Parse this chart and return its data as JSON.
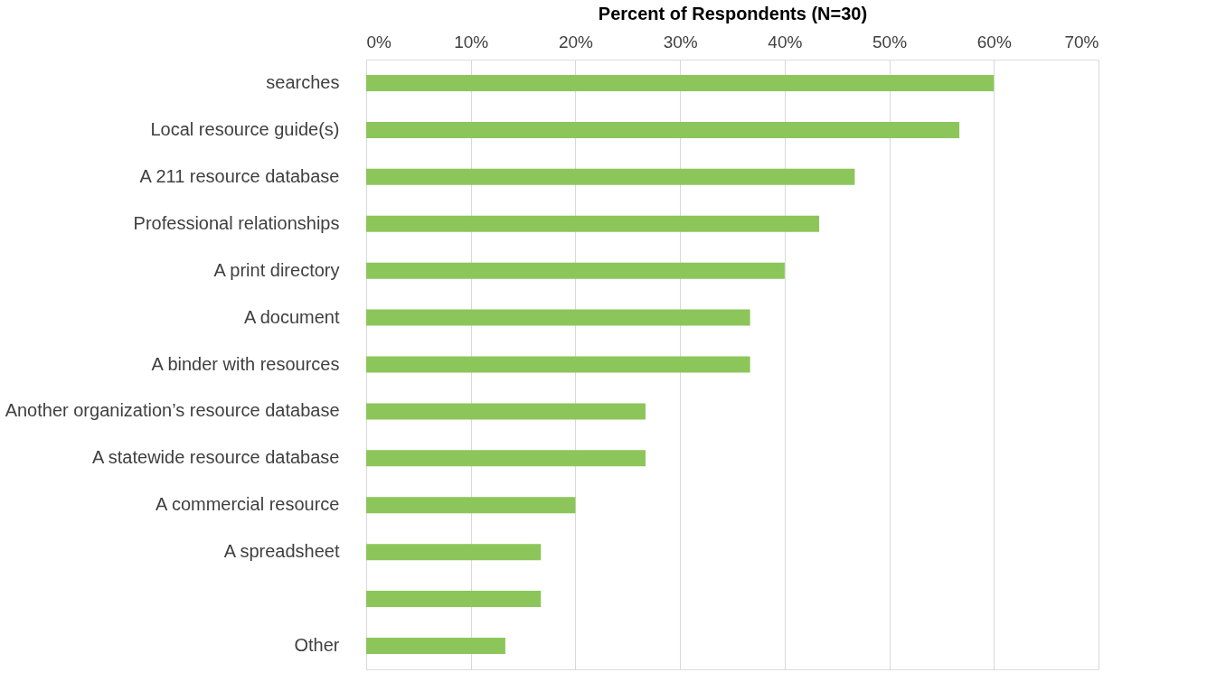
{
  "chart_data": {
    "type": "bar",
    "orientation": "horizontal",
    "xlabel": "Percent of  Respondents (N=30)",
    "categories": [
      "searches",
      "Local resource guide(s)",
      "A 211 resource database",
      "Professional relationships",
      "A print directory",
      "A document",
      "A binder with resources",
      "Another organization’s resource database",
      "A statewide resource database",
      "A commercial resource",
      "A spreadsheet",
      null,
      "Other"
    ],
    "values": [
      60,
      56.7,
      46.7,
      43.3,
      40,
      36.7,
      36.7,
      26.7,
      26.7,
      20,
      16.7,
      16.7,
      13.3
    ],
    "color": "#8cc65a",
    "xlim": [
      0,
      70
    ],
    "xticks": [
      {
        "value": 0,
        "label": "0%"
      },
      {
        "value": 10,
        "label": "10%"
      },
      {
        "value": 20,
        "label": "20%"
      },
      {
        "value": 30,
        "label": "30%"
      },
      {
        "value": 40,
        "label": "40%"
      },
      {
        "value": 50,
        "label": "50%"
      },
      {
        "value": 60,
        "label": "60%"
      },
      {
        "value": 70,
        "label": "70%"
      }
    ],
    "grid": "x"
  }
}
